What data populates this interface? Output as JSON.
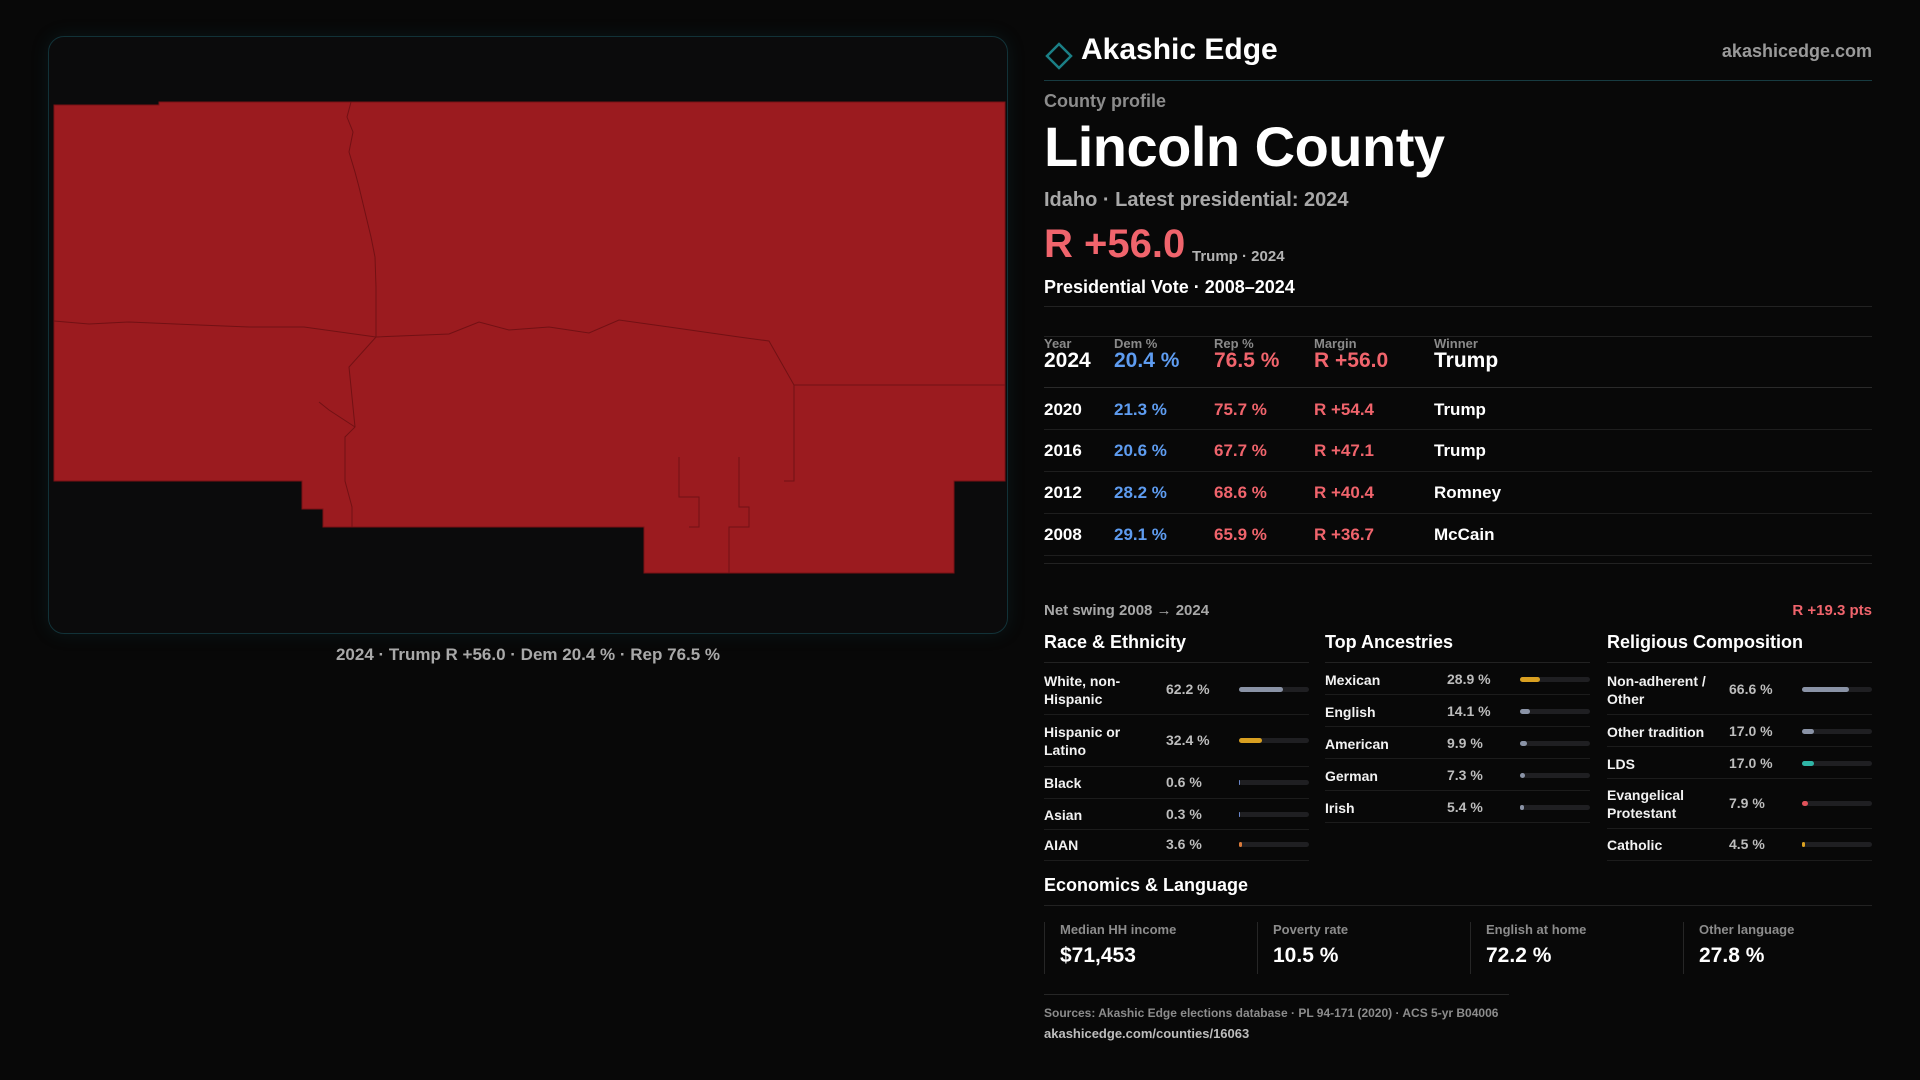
{
  "map": {
    "caption": "2024 · Trump R +56.0 · Dem 20.4 % · Rep 76.5 %",
    "fill_color": "#9b1b1f",
    "border_color": "#7a1215"
  },
  "brand": {
    "name": "Akashic Edge",
    "url": "akashicedge.com",
    "logo_icon": "diamond-outline-icon",
    "accent": "#1b7f86"
  },
  "profile": {
    "label": "County profile",
    "county": "Lincoln County",
    "subtitle": "Idaho · Latest presidential: 2024",
    "margin": "R +56.0",
    "margin_note": "Trump · 2024"
  },
  "vote": {
    "title": "Presidential Vote · 2008–2024",
    "headers": {
      "year": "Year",
      "dem": "Dem %",
      "rep": "Rep %",
      "margin": "Margin",
      "winner": "Winner"
    },
    "rows": [
      {
        "year": "2024",
        "dem": "20.4 %",
        "rep": "76.5 %",
        "margin": "R +56.0",
        "winner": "Trump"
      },
      {
        "year": "2020",
        "dem": "21.3 %",
        "rep": "75.7 %",
        "margin": "R +54.4",
        "winner": "Trump"
      },
      {
        "year": "2016",
        "dem": "20.6 %",
        "rep": "67.7 %",
        "margin": "R +47.1",
        "winner": "Trump"
      },
      {
        "year": "2012",
        "dem": "28.2 %",
        "rep": "68.6 %",
        "margin": "R +40.4",
        "winner": "Romney"
      },
      {
        "year": "2008",
        "dem": "29.1 %",
        "rep": "65.9 %",
        "margin": "R +36.7",
        "winner": "McCain"
      }
    ],
    "swing_label": "Net swing 2008 → 2024",
    "swing_value": "R +19.3 pts"
  },
  "race": {
    "title": "Race & Ethnicity",
    "items": [
      {
        "label": "White, non-Hispanic",
        "value": "62.2 %",
        "pct": 62.2,
        "color": "#8a93a6"
      },
      {
        "label": "Hispanic or Latino",
        "value": "32.4 %",
        "pct": 32.4,
        "color": "#d9a021"
      },
      {
        "label": "Black",
        "value": "0.6 %",
        "pct": 0.6,
        "color": "#6a86c8"
      },
      {
        "label": "Asian",
        "value": "0.3 %",
        "pct": 0.3,
        "color": "#6a86c8"
      },
      {
        "label": "AIAN",
        "value": "3.6 %",
        "pct": 3.6,
        "color": "#d97a3a"
      }
    ]
  },
  "ancestry": {
    "title": "Top Ancestries",
    "items": [
      {
        "label": "Mexican",
        "value": "28.9 %",
        "pct": 28.9,
        "color": "#d9a021"
      },
      {
        "label": "English",
        "value": "14.1 %",
        "pct": 14.1,
        "color": "#8a93a6"
      },
      {
        "label": "American",
        "value": "9.9 %",
        "pct": 9.9,
        "color": "#8a93a6"
      },
      {
        "label": "German",
        "value": "7.3 %",
        "pct": 7.3,
        "color": "#8a93a6"
      },
      {
        "label": "Irish",
        "value": "5.4 %",
        "pct": 5.4,
        "color": "#8a93a6"
      }
    ]
  },
  "religion": {
    "title": "Religious Composition",
    "items": [
      {
        "label": "Non-adherent / Other",
        "value": "66.6 %",
        "pct": 66.6,
        "color": "#8a93a6"
      },
      {
        "label": "Other tradition",
        "value": "17.0 %",
        "pct": 17.0,
        "color": "#8a93a6"
      },
      {
        "label": "LDS",
        "value": "17.0 %",
        "pct": 17.0,
        "color": "#2fb5a6"
      },
      {
        "label": "Evangelical Protestant",
        "value": "7.9 %",
        "pct": 7.9,
        "color": "#e0525a"
      },
      {
        "label": "Catholic",
        "value": "4.5 %",
        "pct": 4.5,
        "color": "#d9a021"
      }
    ]
  },
  "economics": {
    "title": "Economics & Language",
    "cards": [
      {
        "label": "Median HH income",
        "value": "$71,453"
      },
      {
        "label": "Poverty rate",
        "value": "10.5 %"
      },
      {
        "label": "English at home",
        "value": "72.2 %"
      },
      {
        "label": "Other language",
        "value": "27.8 %"
      }
    ]
  },
  "footer": {
    "sources": "Sources: Akashic Edge elections database · PL 94-171 (2020) · ACS 5-yr B04006",
    "url": "akashicedge.com/counties/16063"
  }
}
